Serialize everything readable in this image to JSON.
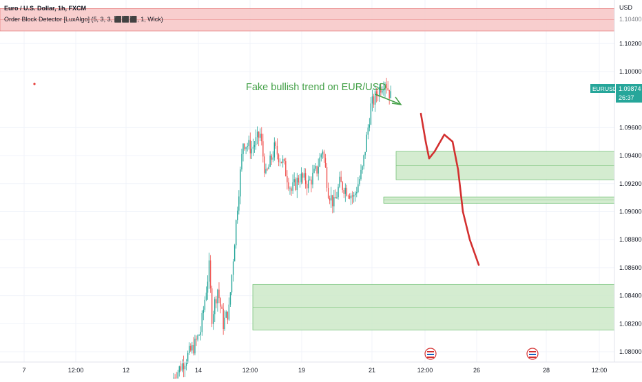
{
  "header": {
    "title": "Euro / U.S. Dollar, 1h, FXCM",
    "indicator": "Order Block Detector [LuxAlgo] (5, 3, 3, ⬛⬛⬛, 1, Wick)"
  },
  "chart_data": {
    "type": "candlestick",
    "symbol": "EURUSD",
    "price_axis_unit": "USD",
    "current_price": "1.09874",
    "countdown": "26:37",
    "ylim": [
      1.0788,
      1.105
    ],
    "y_ticks": [
      "1.10200",
      "1.10000",
      "1.09600",
      "1.09400",
      "1.09200",
      "1.09000",
      "1.08800",
      "1.08600",
      "1.08400",
      "1.08200",
      "1.08000"
    ],
    "y_top_partial": "1.10400",
    "x_ticks": [
      "7",
      "12:00",
      "12",
      "14",
      "12:00",
      "19",
      "21",
      "12:00",
      "26",
      "28",
      "12:00"
    ],
    "annotation": "Fake bullish trend on EUR/USD",
    "zones": [
      {
        "kind": "bearish",
        "from": 1.1029,
        "to": 1.1045
      },
      {
        "kind": "bullish",
        "from": 1.09228,
        "to": 1.0943
      },
      {
        "kind": "bullish",
        "from": 1.0906,
        "to": 1.09105
      },
      {
        "kind": "bullish",
        "from": 1.08155,
        "to": 1.0848
      }
    ],
    "projection": [
      1.097,
      1.095,
      1.0938,
      1.0943,
      1.0955,
      1.095,
      1.093,
      1.09,
      1.088,
      1.0862
    ],
    "candle_count": 180,
    "price_path": [
      [
        0,
        1.078
      ],
      [
        16,
        1.0805
      ],
      [
        20,
        1.0815
      ],
      [
        26,
        1.086
      ],
      [
        28,
        1.0825
      ],
      [
        32,
        1.0845
      ],
      [
        36,
        1.082
      ],
      [
        40,
        1.083
      ],
      [
        46,
        1.0905
      ],
      [
        50,
        1.095
      ],
      [
        56,
        1.0945
      ],
      [
        62,
        1.0955
      ],
      [
        66,
        1.0925
      ],
      [
        72,
        1.0945
      ],
      [
        78,
        1.0935
      ],
      [
        84,
        1.0915
      ],
      [
        90,
        1.0925
      ],
      [
        96,
        1.092
      ],
      [
        102,
        1.093
      ],
      [
        106,
        1.0945
      ],
      [
        110,
        1.0915
      ],
      [
        114,
        1.0905
      ],
      [
        118,
        1.092
      ],
      [
        124,
        1.0915
      ],
      [
        128,
        1.091
      ],
      [
        134,
        1.093
      ],
      [
        140,
        1.0975
      ],
      [
        146,
        1.0988
      ],
      [
        150,
        1.0994
      ],
      [
        154,
        1.0982
      ]
    ],
    "colors": {
      "up": "#26a69a",
      "down": "#ef5350",
      "projection": "#d32f2f",
      "annotation": "#43a047",
      "bearish_zone": "#f7c6c6",
      "bullish_zone": "#cde9c8"
    }
  }
}
